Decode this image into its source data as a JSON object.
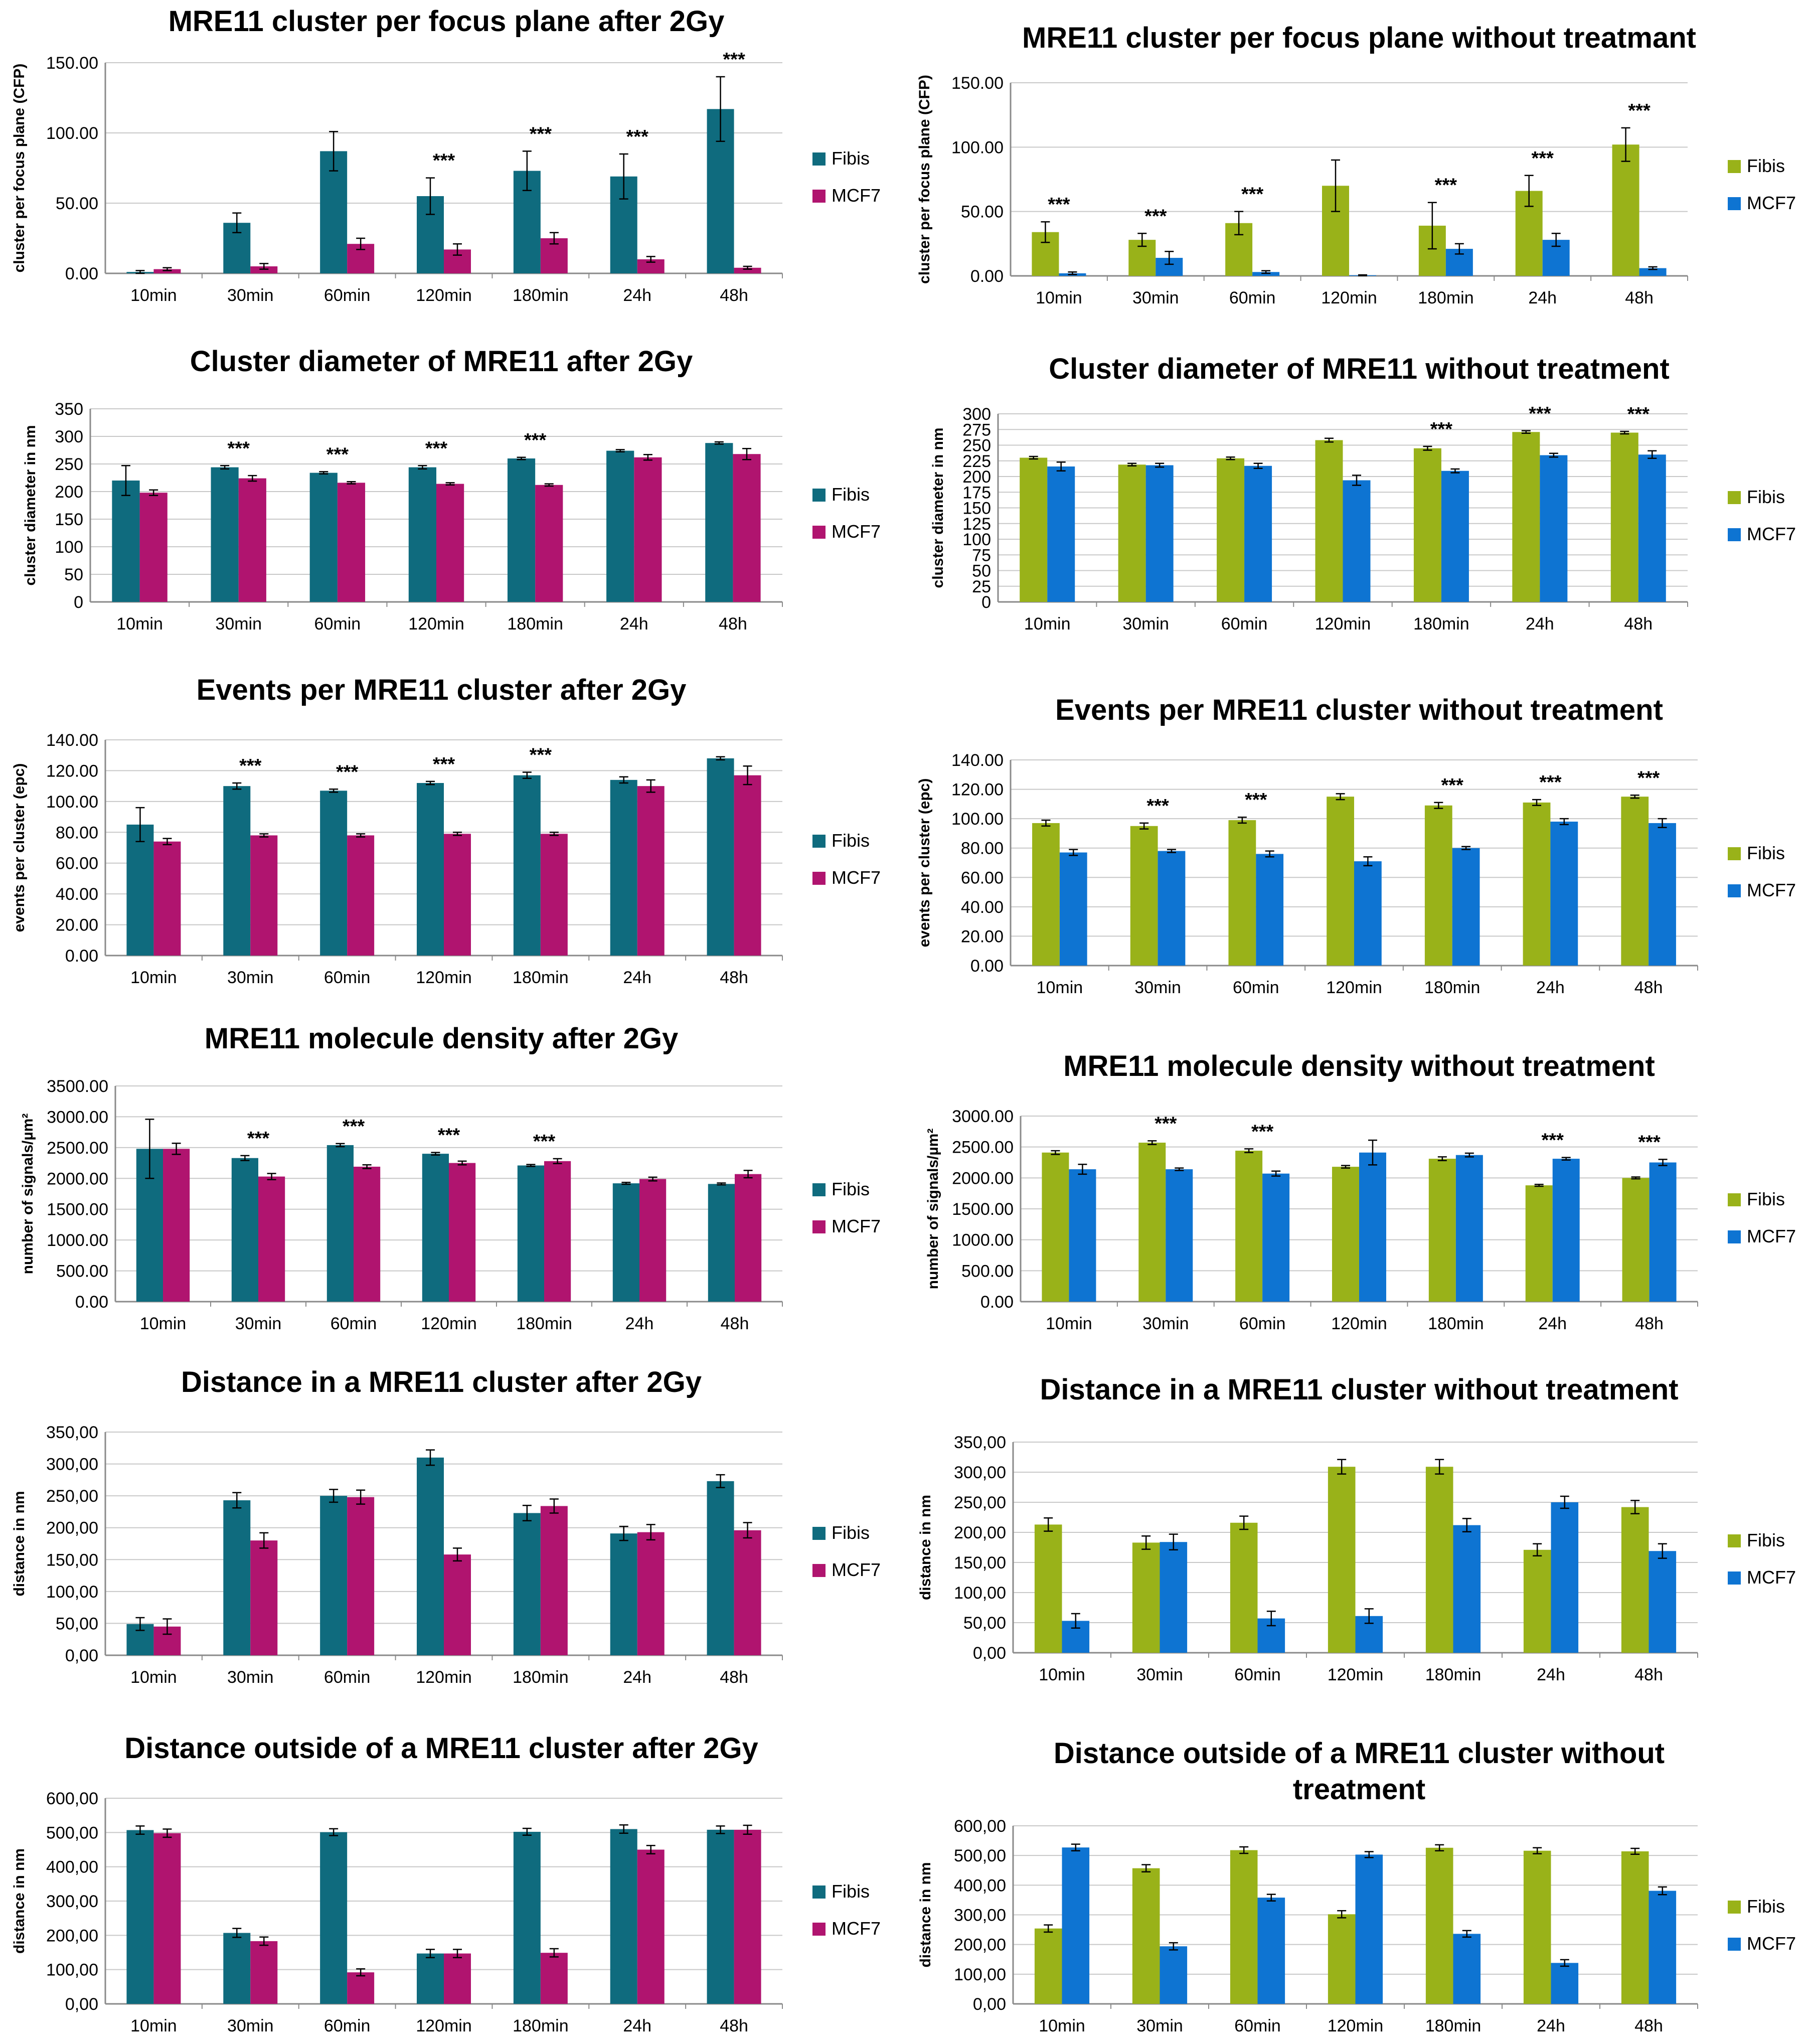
{
  "colors": {
    "fibis_2gy": "#0f6b7e",
    "mcf7_2gy": "#b0146f",
    "fibis_untreated": "#99b219",
    "mcf7_untreated": "#0e74d2",
    "grid": "#c8c8c8",
    "axis": "#8a8a8a"
  },
  "chart_data": [
    {
      "id": "cfp-2gy",
      "type": "bar",
      "title": [
        "MRE11 cluster per focus plane after 2Gy"
      ],
      "ylabel": "cluster per focus plane (CFP)",
      "categories": [
        "10min",
        "30min",
        "60min",
        "120min",
        "180min",
        "24h",
        "48h"
      ],
      "ylim": [
        0,
        150
      ],
      "yticks": [
        0,
        50,
        100,
        150
      ],
      "tick_format": "0.00",
      "palette": "2gy",
      "series": [
        {
          "name": "Fibis",
          "values": [
            1,
            36,
            87,
            55,
            73,
            69,
            117
          ],
          "errors": [
            1,
            7,
            14,
            13,
            14,
            16,
            23
          ]
        },
        {
          "name": "MCF7",
          "values": [
            3,
            5,
            21,
            17,
            25,
            10,
            4
          ],
          "errors": [
            1,
            2,
            4,
            4,
            4,
            2,
            1
          ]
        }
      ],
      "significance": [
        "",
        "",
        "",
        "***",
        "***",
        "***",
        "***"
      ]
    },
    {
      "id": "cfp-untreated",
      "type": "bar",
      "title": [
        "MRE11 cluster per focus plane without treatmant"
      ],
      "ylabel": "cluster per focus plane (CFP)",
      "categories": [
        "10min",
        "30min",
        "60min",
        "120min",
        "180min",
        "24h",
        "48h"
      ],
      "ylim": [
        0,
        150
      ],
      "yticks": [
        0,
        50,
        100,
        150
      ],
      "tick_format": "0.00",
      "palette": "untreated",
      "series": [
        {
          "name": "Fibis",
          "values": [
            34,
            28,
            41,
            70,
            39,
            66,
            102
          ],
          "errors": [
            8,
            5,
            9,
            20,
            18,
            12,
            13
          ]
        },
        {
          "name": "MCF7",
          "values": [
            2,
            14,
            3,
            0.5,
            21,
            28,
            6
          ],
          "errors": [
            1,
            5,
            1,
            0.3,
            4,
            5,
            1
          ]
        }
      ],
      "significance": [
        "***",
        "***",
        "***",
        "",
        "***",
        "***",
        "***"
      ]
    },
    {
      "id": "diam-2gy",
      "type": "bar",
      "title": [
        "Cluster diameter of MRE11 after 2Gy"
      ],
      "ylabel": "cluster diameter in nm",
      "categories": [
        "10min",
        "30min",
        "60min",
        "120min",
        "180min",
        "24h",
        "48h"
      ],
      "ylim": [
        0,
        350
      ],
      "yticks": [
        0,
        50,
        100,
        150,
        200,
        250,
        300,
        350
      ],
      "tick_format": "0",
      "palette": "2gy",
      "series": [
        {
          "name": "Fibis",
          "values": [
            220,
            244,
            234,
            244,
            260,
            274,
            288
          ],
          "errors": [
            27,
            3,
            2,
            3,
            2,
            2,
            2
          ]
        },
        {
          "name": "MCF7",
          "values": [
            198,
            224,
            216,
            214,
            212,
            262,
            268
          ],
          "errors": [
            5,
            5,
            2,
            2,
            2,
            5,
            10
          ]
        }
      ],
      "significance": [
        "",
        "***",
        "***",
        "***",
        "***",
        "",
        ""
      ]
    },
    {
      "id": "diam-untreated",
      "type": "bar",
      "title": [
        "Cluster diameter of MRE11 without treatment"
      ],
      "ylabel": "cluster diameter in nm",
      "categories": [
        "10min",
        "30min",
        "60min",
        "120min",
        "180min",
        "24h",
        "48h"
      ],
      "ylim": [
        0,
        300
      ],
      "yticks": [
        0,
        25,
        50,
        75,
        100,
        125,
        150,
        175,
        200,
        225,
        250,
        275,
        300
      ],
      "tick_format": "0",
      "palette": "untreated",
      "series": [
        {
          "name": "Fibis",
          "values": [
            230,
            219,
            229,
            258,
            245,
            271,
            270
          ],
          "errors": [
            2,
            2,
            2,
            3,
            3,
            2,
            2
          ]
        },
        {
          "name": "MCF7",
          "values": [
            216,
            218,
            217,
            194,
            209,
            234,
            235
          ],
          "errors": [
            7,
            3,
            4,
            8,
            3,
            3,
            6
          ]
        }
      ],
      "significance": [
        "",
        "",
        "",
        "",
        "***",
        "***",
        "***"
      ]
    },
    {
      "id": "epc-2gy",
      "type": "bar",
      "title": [
        "Events per MRE11 cluster after 2Gy"
      ],
      "ylabel": "events per cluster (epc)",
      "categories": [
        "10min",
        "30min",
        "60min",
        "120min",
        "180min",
        "24h",
        "48h"
      ],
      "ylim": [
        0,
        140
      ],
      "yticks": [
        0,
        20,
        40,
        60,
        80,
        100,
        120,
        140
      ],
      "tick_format": "0.00",
      "palette": "2gy",
      "series": [
        {
          "name": "Fibis",
          "values": [
            85,
            110,
            107,
            112,
            117,
            114,
            128
          ],
          "errors": [
            11,
            2,
            1,
            1,
            2,
            2,
            1
          ]
        },
        {
          "name": "MCF7",
          "values": [
            74,
            78,
            78,
            79,
            79,
            110,
            117
          ],
          "errors": [
            2,
            1,
            1,
            1,
            1,
            4,
            6
          ]
        }
      ],
      "significance": [
        "",
        "***",
        "***",
        "***",
        "***",
        "",
        ""
      ]
    },
    {
      "id": "epc-untreated",
      "type": "bar",
      "title": [
        "Events per MRE11 cluster without treatment"
      ],
      "ylabel": "events per cluster (epc)",
      "categories": [
        "10min",
        "30min",
        "60min",
        "120min",
        "180min",
        "24h",
        "48h"
      ],
      "ylim": [
        0,
        140
      ],
      "yticks": [
        0,
        20,
        40,
        60,
        80,
        100,
        120,
        140
      ],
      "tick_format": "0.00",
      "palette": "untreated",
      "series": [
        {
          "name": "Fibis",
          "values": [
            97,
            95,
            99,
            115,
            109,
            111,
            115
          ],
          "errors": [
            2,
            2,
            2,
            2,
            2,
            2,
            1
          ]
        },
        {
          "name": "MCF7",
          "values": [
            77,
            78,
            76,
            71,
            80,
            98,
            97
          ],
          "errors": [
            2,
            1,
            2,
            3,
            1,
            2,
            3
          ]
        }
      ],
      "significance": [
        "",
        "***",
        "***",
        "",
        "***",
        "***",
        "***"
      ]
    },
    {
      "id": "density-2gy",
      "type": "bar",
      "title": [
        "MRE11 molecule density after 2Gy"
      ],
      "ylabel": "number of signals/µm²",
      "categories": [
        "10min",
        "30min",
        "60min",
        "120min",
        "180min",
        "24h",
        "48h"
      ],
      "ylim": [
        0,
        3500
      ],
      "yticks": [
        0,
        500,
        1000,
        1500,
        2000,
        2500,
        3000,
        3500
      ],
      "tick_format": "0.00",
      "palette": "2gy",
      "series": [
        {
          "name": "Fibis",
          "values": [
            2480,
            2330,
            2540,
            2400,
            2210,
            1920,
            1910
          ],
          "errors": [
            480,
            40,
            25,
            20,
            15,
            15,
            15
          ]
        },
        {
          "name": "MCF7",
          "values": [
            2480,
            2030,
            2190,
            2250,
            2280,
            1990,
            2070
          ],
          "errors": [
            90,
            50,
            30,
            30,
            40,
            30,
            60
          ]
        }
      ],
      "significance": [
        "",
        "***",
        "***",
        "***",
        "***",
        "",
        ""
      ]
    },
    {
      "id": "density-untreated",
      "type": "bar",
      "title": [
        "MRE11 molecule density without treatment"
      ],
      "ylabel": "number of signals/µm²",
      "categories": [
        "10min",
        "30min",
        "60min",
        "120min",
        "180min",
        "24h",
        "48h"
      ],
      "ylim": [
        0,
        3000
      ],
      "yticks": [
        0,
        500,
        1000,
        1500,
        2000,
        2500,
        3000
      ],
      "tick_format": "0.00",
      "palette": "untreated",
      "series": [
        {
          "name": "Fibis",
          "values": [
            2410,
            2570,
            2440,
            2180,
            2310,
            1880,
            2000
          ],
          "errors": [
            30,
            30,
            30,
            20,
            30,
            15,
            15
          ]
        },
        {
          "name": "MCF7",
          "values": [
            2140,
            2140,
            2070,
            2410,
            2370,
            2310,
            2250
          ],
          "errors": [
            80,
            20,
            40,
            200,
            30,
            20,
            50
          ]
        }
      ],
      "significance": [
        "",
        "***",
        "***",
        "",
        "",
        "***",
        "***"
      ]
    },
    {
      "id": "dist-in-2gy",
      "type": "bar",
      "title": [
        "Distance in a MRE11 cluster after 2Gy"
      ],
      "ylabel": "distance in nm",
      "categories": [
        "10min",
        "30min",
        "60min",
        "120min",
        "180min",
        "24h",
        "48h"
      ],
      "ylim": [
        0,
        350
      ],
      "yticks": [
        0,
        50,
        100,
        150,
        200,
        250,
        300,
        350
      ],
      "tick_format": "0,00",
      "palette": "2gy",
      "series": [
        {
          "name": "Fibis",
          "values": [
            49,
            243,
            250,
            310,
            223,
            191,
            273
          ],
          "errors": [
            10,
            12,
            10,
            12,
            12,
            11,
            10
          ]
        },
        {
          "name": "MCF7",
          "values": [
            45,
            180,
            248,
            158,
            234,
            193,
            196
          ],
          "errors": [
            12,
            12,
            11,
            10,
            11,
            12,
            12
          ]
        }
      ],
      "significance": [
        "",
        "",
        "",
        "",
        "",
        "",
        ""
      ]
    },
    {
      "id": "dist-in-untreated",
      "type": "bar",
      "title": [
        "Distance in a MRE11 cluster without treatment"
      ],
      "ylabel": "distance in nm",
      "categories": [
        "10min",
        "30min",
        "60min",
        "120min",
        "180min",
        "24h",
        "48h"
      ],
      "ylim": [
        0,
        350
      ],
      "yticks": [
        0,
        50,
        100,
        150,
        200,
        250,
        300,
        350
      ],
      "tick_format": "0,00",
      "palette": "untreated",
      "series": [
        {
          "name": "Fibis",
          "values": [
            213,
            183,
            216,
            309,
            309,
            171,
            242
          ],
          "errors": [
            11,
            11,
            11,
            12,
            12,
            10,
            11
          ]
        },
        {
          "name": "MCF7",
          "values": [
            53,
            184,
            57,
            61,
            212,
            250,
            169
          ],
          "errors": [
            12,
            13,
            12,
            12,
            11,
            10,
            12
          ]
        }
      ],
      "significance": [
        "",
        "",
        "",
        "",
        "",
        "",
        ""
      ]
    },
    {
      "id": "dist-out-2gy",
      "type": "bar",
      "title": [
        "Distance outside of a MRE11 cluster after  2Gy"
      ],
      "ylabel": "distance in nm",
      "categories": [
        "10min",
        "30min",
        "60min",
        "120min",
        "180min",
        "24h",
        "48h"
      ],
      "ylim": [
        0,
        600
      ],
      "yticks": [
        0,
        100,
        200,
        300,
        400,
        500,
        600
      ],
      "tick_format": "0,00",
      "palette": "2gy",
      "series": [
        {
          "name": "Fibis",
          "values": [
            507,
            207,
            501,
            147,
            502,
            510,
            508
          ],
          "errors": [
            12,
            13,
            10,
            12,
            10,
            12,
            11
          ]
        },
        {
          "name": "MCF7",
          "values": [
            498,
            183,
            92,
            147,
            149,
            450,
            508
          ],
          "errors": [
            12,
            12,
            10,
            12,
            12,
            12,
            13
          ]
        }
      ],
      "significance": [
        "",
        "",
        "",
        "",
        "",
        "",
        ""
      ]
    },
    {
      "id": "dist-out-untreated",
      "type": "bar",
      "title": [
        "Distance outside of a MRE11 cluster without",
        "treatment"
      ],
      "ylabel": "distance in nm",
      "categories": [
        "10min",
        "30min",
        "60min",
        "120min",
        "180min",
        "24h",
        "48h"
      ],
      "ylim": [
        0,
        600
      ],
      "yticks": [
        0,
        100,
        200,
        300,
        400,
        500,
        600
      ],
      "tick_format": "0,00",
      "palette": "untreated",
      "series": [
        {
          "name": "Fibis",
          "values": [
            254,
            457,
            518,
            302,
            526,
            516,
            514
          ],
          "errors": [
            12,
            12,
            11,
            12,
            10,
            10,
            10
          ]
        },
        {
          "name": "MCF7",
          "values": [
            527,
            194,
            358,
            503,
            236,
            138,
            381
          ],
          "errors": [
            11,
            12,
            11,
            10,
            11,
            11,
            13
          ]
        }
      ],
      "significance": [
        "",
        "",
        "",
        "",
        "",
        "",
        ""
      ]
    }
  ]
}
